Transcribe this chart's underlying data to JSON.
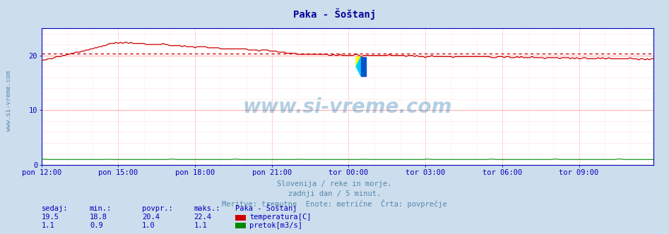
{
  "title": "Paka - Šoštanj",
  "title_color": "#000099",
  "bg_color": "#ccdded",
  "plot_bg_color": "#ffffff",
  "x_labels": [
    "pon 12:00",
    "pon 15:00",
    "pon 18:00",
    "pon 21:00",
    "tor 00:00",
    "tor 03:00",
    "tor 06:00",
    "tor 09:00"
  ],
  "x_ticks_pos": [
    0,
    36,
    72,
    108,
    144,
    180,
    216,
    252
  ],
  "n_points": 288,
  "y_min": 0,
  "y_max": 25,
  "y_ticks": [
    0,
    10,
    20
  ],
  "temp_avg": 20.4,
  "temp_min": 18.8,
  "temp_max": 22.4,
  "temp_current": 19.5,
  "flow_avg": 1.0,
  "flow_min": 0.9,
  "flow_max": 1.1,
  "flow_current": 1.1,
  "temp_color": "#cc0000",
  "flow_color": "#008800",
  "avg_line_color": "#cc0000",
  "grid_h_color": "#ffaaaa",
  "grid_v_color": "#ffcccc",
  "axis_color": "#0000bb",
  "text_color": "#5588aa",
  "subtitle1": "Slovenija / reke in morje.",
  "subtitle2": "zadnji dan / 5 minut.",
  "subtitle3": "Meritve: trenutne  Enote: metrične  Črta: povprečje",
  "legend_title": "Paka - Šoštanj",
  "label_sedaj": "sedaj:",
  "label_min": "min.:",
  "label_povpr": "povpr.:",
  "label_maks": "maks.:",
  "label_temp": "temperatura[C]",
  "label_flow": "pretok[m3/s]",
  "watermark": "www.si-vreme.com",
  "watermark_color": "#4488bb",
  "sidebar_text": "www.si-vreme.com",
  "sidebar_color": "#5588aa"
}
